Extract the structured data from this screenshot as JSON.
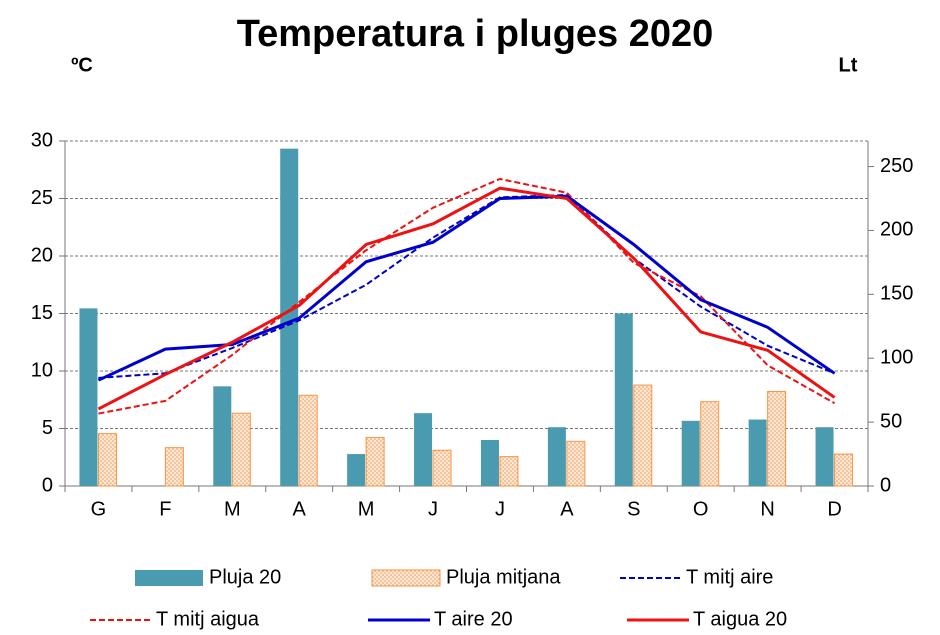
{
  "chart_data": {
    "type": "combo",
    "title": "Temperatura i pluges 2020",
    "y_label": "ºC",
    "y2_label": "Lt",
    "categories": [
      "G",
      "F",
      "M",
      "A",
      "M",
      "J",
      "J",
      "A",
      "S",
      "O",
      "N",
      "D"
    ],
    "ylim": [
      0,
      30
    ],
    "yticks": [
      0,
      5,
      10,
      15,
      20,
      25,
      30
    ],
    "y2lim": [
      0,
      270
    ],
    "y2ticks": [
      0,
      50,
      100,
      150,
      200,
      250
    ],
    "grid": true,
    "series": [
      {
        "name": "Pluja 20",
        "type": "bar",
        "axis": "y2",
        "color": "#4a9bb0",
        "values": [
          139,
          0,
          78,
          264,
          25,
          57,
          36,
          46,
          135,
          51,
          52,
          46
        ]
      },
      {
        "name": "Pluja mitjana",
        "type": "bar",
        "axis": "y2",
        "color": "#f79646",
        "pattern": "dots",
        "values": [
          41,
          30,
          57,
          71,
          38,
          28,
          23,
          35,
          79,
          66,
          74,
          25
        ]
      },
      {
        "name": "T mitj aire",
        "type": "line",
        "dashed": true,
        "color": "#0000cc",
        "values": [
          9.4,
          9.8,
          12,
          14.4,
          17.5,
          21.6,
          25.1,
          25.3,
          19.8,
          15.6,
          12.2,
          9.8
        ]
      },
      {
        "name": "T mitj aigua",
        "type": "line",
        "dashed": true,
        "color": "#ee1111",
        "values": [
          6.3,
          7.4,
          11.4,
          16,
          20.5,
          24.2,
          26.7,
          25.5,
          19.4,
          16.5,
          10.5,
          7.2
        ]
      },
      {
        "name": "T aire 20",
        "type": "line",
        "dashed": false,
        "color": "#0000cc",
        "values": [
          9.2,
          11.9,
          12.3,
          14.6,
          19.5,
          21.2,
          25,
          25.2,
          21,
          16.2,
          13.8,
          9.8
        ]
      },
      {
        "name": "T aigua 20",
        "type": "line",
        "dashed": false,
        "color": "#ee1111",
        "values": [
          6.7,
          9.7,
          12.5,
          15.7,
          21,
          22.8,
          25.9,
          25,
          19.8,
          13.4,
          11.8,
          7.7
        ]
      }
    ]
  }
}
